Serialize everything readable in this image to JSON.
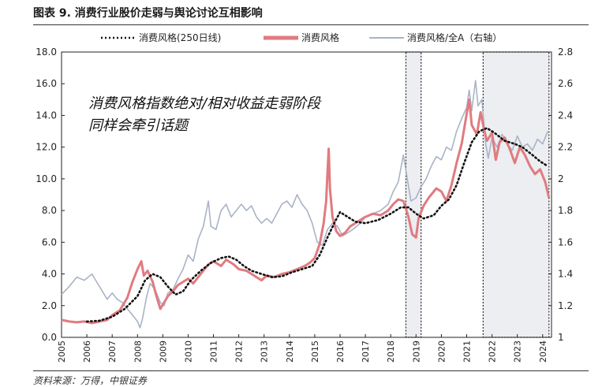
{
  "figure": {
    "title": "图表 9. 消费行业股价走弱与舆论讨论互相影响",
    "source": "资料来源：万得，中银证券"
  },
  "colors": {
    "ma250": "#111111",
    "consumer": "#e07b80",
    "ratio": "#a9b3c6",
    "shade": "#eceef1"
  },
  "chart_data": {
    "type": "line",
    "title": "消费行业股价走弱与舆论讨论互相影响",
    "x_ticks": [
      "2005",
      "2006",
      "2007",
      "2008",
      "2009",
      "2010",
      "2011",
      "2012",
      "2013",
      "2014",
      "2015",
      "2016",
      "2017",
      "2018",
      "2019",
      "2020",
      "2021",
      "2022",
      "2023",
      "2024"
    ],
    "y_left": {
      "ticks": [
        "0.0",
        "2.0",
        "4.0",
        "6.0",
        "8.0",
        "10.0",
        "12.0",
        "14.0",
        "16.0",
        "18.0"
      ],
      "range": [
        0,
        18
      ]
    },
    "y_right": {
      "ticks": [
        "1",
        "1.2",
        "1.4",
        "1.6",
        "1.8",
        "2",
        "2.2",
        "2.4",
        "2.6",
        "2.8"
      ],
      "range": [
        1,
        2.8
      ]
    },
    "annotation": [
      "消费风格指数绝对/相对收益走弱阶段",
      "同样会牵引话题"
    ],
    "shaded_periods": [
      {
        "start": 2018.6,
        "end": 2019.2
      },
      {
        "start": 2021.65,
        "end": 2024.25
      }
    ],
    "series": [
      {
        "name": "消费风格(250日线)",
        "axis": "left",
        "style": "dotted",
        "color": "#111111",
        "points": [
          [
            2006.0,
            1.0
          ],
          [
            2006.5,
            1.05
          ],
          [
            2007.0,
            1.3
          ],
          [
            2007.5,
            1.8
          ],
          [
            2008.0,
            2.6
          ],
          [
            2008.3,
            3.6
          ],
          [
            2008.6,
            4.0
          ],
          [
            2008.9,
            3.8
          ],
          [
            2009.2,
            3.2
          ],
          [
            2009.5,
            2.7
          ],
          [
            2009.8,
            2.9
          ],
          [
            2010.1,
            3.6
          ],
          [
            2010.5,
            4.2
          ],
          [
            2010.9,
            4.7
          ],
          [
            2011.3,
            5.0
          ],
          [
            2011.6,
            5.1
          ],
          [
            2011.9,
            4.9
          ],
          [
            2012.2,
            4.5
          ],
          [
            2012.5,
            4.2
          ],
          [
            2012.9,
            4.0
          ],
          [
            2013.3,
            3.8
          ],
          [
            2013.7,
            3.85
          ],
          [
            2014.1,
            4.1
          ],
          [
            2014.5,
            4.3
          ],
          [
            2014.9,
            4.5
          ],
          [
            2015.2,
            5.2
          ],
          [
            2015.5,
            6.3
          ],
          [
            2015.8,
            7.3
          ],
          [
            2016.0,
            7.9
          ],
          [
            2016.3,
            7.6
          ],
          [
            2016.6,
            7.3
          ],
          [
            2017.0,
            7.2
          ],
          [
            2017.5,
            7.4
          ],
          [
            2018.0,
            7.8
          ],
          [
            2018.4,
            8.2
          ],
          [
            2018.7,
            8.2
          ],
          [
            2019.0,
            7.8
          ],
          [
            2019.3,
            7.5
          ],
          [
            2019.7,
            7.7
          ],
          [
            2020.0,
            8.3
          ],
          [
            2020.3,
            8.7
          ],
          [
            2020.6,
            9.6
          ],
          [
            2020.9,
            11.0
          ],
          [
            2021.2,
            12.3
          ],
          [
            2021.5,
            13.0
          ],
          [
            2021.8,
            13.2
          ],
          [
            2022.1,
            12.9
          ],
          [
            2022.5,
            12.4
          ],
          [
            2022.9,
            12.2
          ],
          [
            2023.2,
            12.0
          ],
          [
            2023.6,
            11.5
          ],
          [
            2023.9,
            11.1
          ],
          [
            2024.2,
            10.8
          ]
        ]
      },
      {
        "name": "消费风格",
        "axis": "left",
        "style": "solid",
        "color": "#e07b80",
        "points": [
          [
            2005.0,
            1.1
          ],
          [
            2005.3,
            1.0
          ],
          [
            2005.6,
            0.95
          ],
          [
            2005.9,
            1.0
          ],
          [
            2006.2,
            0.9
          ],
          [
            2006.5,
            1.0
          ],
          [
            2006.8,
            1.1
          ],
          [
            2007.0,
            1.4
          ],
          [
            2007.3,
            1.7
          ],
          [
            2007.6,
            2.5
          ],
          [
            2007.8,
            3.5
          ],
          [
            2008.0,
            4.3
          ],
          [
            2008.15,
            4.8
          ],
          [
            2008.25,
            3.9
          ],
          [
            2008.4,
            4.2
          ],
          [
            2008.6,
            3.5
          ],
          [
            2008.75,
            2.6
          ],
          [
            2008.9,
            1.8
          ],
          [
            2009.05,
            2.2
          ],
          [
            2009.2,
            2.6
          ],
          [
            2009.4,
            2.9
          ],
          [
            2009.6,
            3.3
          ],
          [
            2009.8,
            3.5
          ],
          [
            2010.0,
            3.7
          ],
          [
            2010.2,
            3.4
          ],
          [
            2010.4,
            3.8
          ],
          [
            2010.6,
            4.2
          ],
          [
            2010.8,
            4.6
          ],
          [
            2011.0,
            4.8
          ],
          [
            2011.3,
            4.5
          ],
          [
            2011.5,
            4.9
          ],
          [
            2011.8,
            4.6
          ],
          [
            2012.0,
            4.3
          ],
          [
            2012.3,
            4.2
          ],
          [
            2012.6,
            3.9
          ],
          [
            2012.9,
            3.6
          ],
          [
            2013.1,
            3.9
          ],
          [
            2013.4,
            3.8
          ],
          [
            2013.7,
            4.0
          ],
          [
            2014.0,
            4.1
          ],
          [
            2014.3,
            4.3
          ],
          [
            2014.6,
            4.5
          ],
          [
            2014.8,
            4.7
          ],
          [
            2015.0,
            5.0
          ],
          [
            2015.2,
            5.9
          ],
          [
            2015.35,
            7.2
          ],
          [
            2015.45,
            8.6
          ],
          [
            2015.5,
            10.3
          ],
          [
            2015.55,
            11.9
          ],
          [
            2015.6,
            9.4
          ],
          [
            2015.7,
            7.6
          ],
          [
            2015.85,
            6.7
          ],
          [
            2016.0,
            6.4
          ],
          [
            2016.2,
            6.6
          ],
          [
            2016.4,
            7.0
          ],
          [
            2016.7,
            7.3
          ],
          [
            2017.0,
            7.6
          ],
          [
            2017.3,
            7.8
          ],
          [
            2017.6,
            7.7
          ],
          [
            2017.9,
            8.0
          ],
          [
            2018.1,
            8.4
          ],
          [
            2018.3,
            8.7
          ],
          [
            2018.5,
            8.6
          ],
          [
            2018.7,
            7.6
          ],
          [
            2018.85,
            6.5
          ],
          [
            2019.0,
            6.3
          ],
          [
            2019.1,
            7.5
          ],
          [
            2019.3,
            8.3
          ],
          [
            2019.5,
            8.8
          ],
          [
            2019.8,
            9.4
          ],
          [
            2020.0,
            9.2
          ],
          [
            2020.2,
            8.6
          ],
          [
            2020.4,
            9.6
          ],
          [
            2020.6,
            11.0
          ],
          [
            2020.8,
            12.2
          ],
          [
            2021.0,
            14.1
          ],
          [
            2021.1,
            15.0
          ],
          [
            2021.2,
            13.4
          ],
          [
            2021.4,
            12.8
          ],
          [
            2021.55,
            14.2
          ],
          [
            2021.7,
            13.0
          ],
          [
            2021.8,
            12.4
          ],
          [
            2022.0,
            12.9
          ],
          [
            2022.15,
            11.2
          ],
          [
            2022.3,
            12.3
          ],
          [
            2022.5,
            12.6
          ],
          [
            2022.7,
            11.9
          ],
          [
            2022.9,
            11.0
          ],
          [
            2023.1,
            12.0
          ],
          [
            2023.3,
            11.5
          ],
          [
            2023.5,
            10.8
          ],
          [
            2023.7,
            10.3
          ],
          [
            2023.9,
            10.6
          ],
          [
            2024.1,
            9.8
          ],
          [
            2024.25,
            8.8
          ]
        ]
      },
      {
        "name": "消费风格/全A（右轴）",
        "axis": "right",
        "style": "solid",
        "color": "#a9b3c6",
        "points": [
          [
            2005.0,
            1.27
          ],
          [
            2005.3,
            1.32
          ],
          [
            2005.6,
            1.38
          ],
          [
            2005.9,
            1.36
          ],
          [
            2006.2,
            1.4
          ],
          [
            2006.5,
            1.32
          ],
          [
            2006.8,
            1.24
          ],
          [
            2007.0,
            1.28
          ],
          [
            2007.2,
            1.24
          ],
          [
            2007.4,
            1.22
          ],
          [
            2007.6,
            1.18
          ],
          [
            2007.8,
            1.14
          ],
          [
            2008.0,
            1.1
          ],
          [
            2008.1,
            1.06
          ],
          [
            2008.2,
            1.12
          ],
          [
            2008.35,
            1.25
          ],
          [
            2008.5,
            1.34
          ],
          [
            2008.7,
            1.3
          ],
          [
            2008.9,
            1.22
          ],
          [
            2009.05,
            1.2
          ],
          [
            2009.2,
            1.28
          ],
          [
            2009.4,
            1.3
          ],
          [
            2009.6,
            1.37
          ],
          [
            2009.8,
            1.43
          ],
          [
            2010.0,
            1.52
          ],
          [
            2010.2,
            1.48
          ],
          [
            2010.4,
            1.62
          ],
          [
            2010.6,
            1.7
          ],
          [
            2010.8,
            1.86
          ],
          [
            2010.9,
            1.7
          ],
          [
            2011.1,
            1.68
          ],
          [
            2011.3,
            1.8
          ],
          [
            2011.5,
            1.84
          ],
          [
            2011.7,
            1.76
          ],
          [
            2011.9,
            1.8
          ],
          [
            2012.1,
            1.84
          ],
          [
            2012.3,
            1.8
          ],
          [
            2012.5,
            1.83
          ],
          [
            2012.7,
            1.76
          ],
          [
            2012.9,
            1.72
          ],
          [
            2013.1,
            1.75
          ],
          [
            2013.3,
            1.72
          ],
          [
            2013.5,
            1.78
          ],
          [
            2013.7,
            1.84
          ],
          [
            2013.9,
            1.86
          ],
          [
            2014.1,
            1.82
          ],
          [
            2014.3,
            1.9
          ],
          [
            2014.5,
            1.84
          ],
          [
            2014.7,
            1.8
          ],
          [
            2014.9,
            1.72
          ],
          [
            2015.1,
            1.6
          ],
          [
            2015.3,
            1.58
          ],
          [
            2015.5,
            1.68
          ],
          [
            2015.7,
            1.72
          ],
          [
            2015.9,
            1.7
          ],
          [
            2016.1,
            1.64
          ],
          [
            2016.3,
            1.66
          ],
          [
            2016.5,
            1.68
          ],
          [
            2016.8,
            1.72
          ],
          [
            2017.0,
            1.76
          ],
          [
            2017.3,
            1.78
          ],
          [
            2017.6,
            1.8
          ],
          [
            2017.9,
            1.84
          ],
          [
            2018.1,
            1.92
          ],
          [
            2018.3,
            1.98
          ],
          [
            2018.5,
            2.15
          ],
          [
            2018.6,
            2.05
          ],
          [
            2018.8,
            1.86
          ],
          [
            2019.0,
            1.88
          ],
          [
            2019.2,
            1.95
          ],
          [
            2019.4,
            2.0
          ],
          [
            2019.6,
            2.08
          ],
          [
            2019.8,
            2.14
          ],
          [
            2020.0,
            2.12
          ],
          [
            2020.2,
            2.2
          ],
          [
            2020.4,
            2.18
          ],
          [
            2020.6,
            2.3
          ],
          [
            2020.8,
            2.38
          ],
          [
            2021.0,
            2.45
          ],
          [
            2021.1,
            2.56
          ],
          [
            2021.2,
            2.43
          ],
          [
            2021.35,
            2.62
          ],
          [
            2021.45,
            2.46
          ],
          [
            2021.6,
            2.5
          ],
          [
            2021.75,
            2.22
          ],
          [
            2021.85,
            2.13
          ],
          [
            2022.0,
            2.26
          ],
          [
            2022.2,
            2.2
          ],
          [
            2022.4,
            2.28
          ],
          [
            2022.6,
            2.22
          ],
          [
            2022.8,
            2.18
          ],
          [
            2023.0,
            2.27
          ],
          [
            2023.2,
            2.2
          ],
          [
            2023.4,
            2.22
          ],
          [
            2023.6,
            2.18
          ],
          [
            2023.8,
            2.25
          ],
          [
            2024.0,
            2.22
          ],
          [
            2024.2,
            2.3
          ]
        ]
      }
    ]
  }
}
